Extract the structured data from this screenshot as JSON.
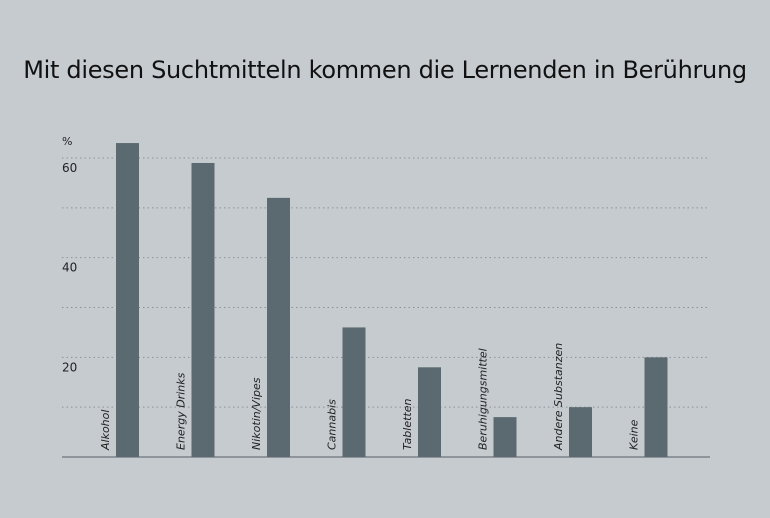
{
  "chart_data": {
    "type": "bar",
    "title": "Mit diesen Suchtmitteln kommen die Lernenden in Berührung",
    "ylabel": "%",
    "categories": [
      "Alkohol",
      "Energy Drinks",
      "Nikotin/Vipes",
      "Cannabis",
      "Tabletten",
      "Beruhigungsmittel",
      "Andere Substanzen",
      "Keine"
    ],
    "values": [
      63,
      59,
      52,
      26,
      18,
      8,
      10,
      20
    ],
    "ylim": [
      0,
      60
    ],
    "y_tick_labels": [
      {
        "value": 20,
        "label": "20"
      },
      {
        "value": 40,
        "label": "40"
      },
      {
        "value": 60,
        "label": "60"
      }
    ],
    "gridlines": [
      10,
      20,
      30,
      40,
      50,
      60
    ],
    "grid": true,
    "legend": "none",
    "colors": {
      "bar": "#5a6a70",
      "background": "#c6cbd0",
      "grid": "#8a9298",
      "axis": "#555d63"
    }
  }
}
